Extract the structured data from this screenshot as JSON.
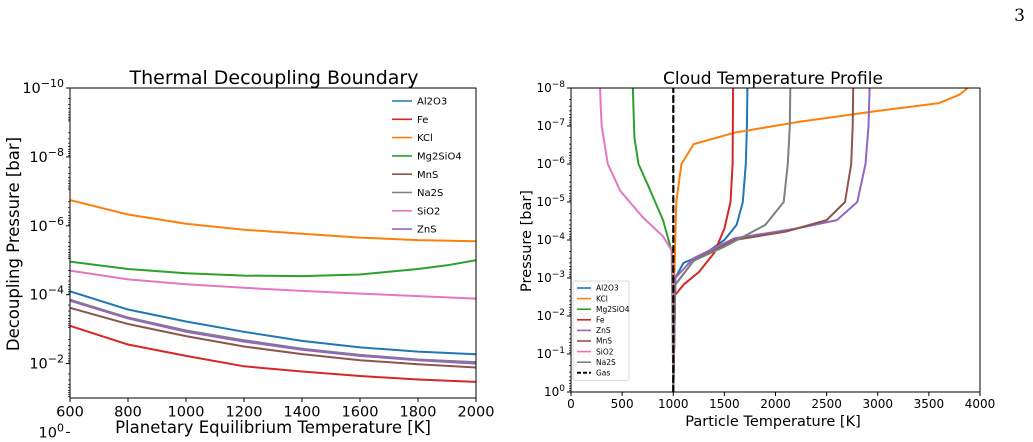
{
  "page": {
    "number": "3"
  },
  "chart_data": [
    {
      "type": "line",
      "title": "Thermal Decoupling Boundary",
      "xlabel": "Planetary Equilibrium Temperature [K]",
      "ylabel": "Decoupling Pressure [bar]",
      "xlim": [
        600,
        2000
      ],
      "ylim": [
        -1,
        -10
      ],
      "y_scale": "log (inverted)",
      "x_ticks": [
        "600",
        "800",
        "1000",
        "1200",
        "1400",
        "1600",
        "1800",
        "2000"
      ],
      "y_ticks": [
        {
          "exp": 0,
          "label": "10",
          "sup": "0"
        },
        {
          "exp": -2,
          "label": "10",
          "sup": "−2"
        },
        {
          "exp": -4,
          "label": "10",
          "sup": "−4"
        },
        {
          "exp": -6,
          "label": "10",
          "sup": "−6"
        },
        {
          "exp": -8,
          "label": "10",
          "sup": "−8"
        },
        {
          "exp": -10,
          "label": "10",
          "sup": "−10"
        }
      ],
      "legend_position": "top-right",
      "grid": false,
      "series": [
        {
          "name": "Al2O3",
          "color": "#1f77b4",
          "x": [
            600,
            800,
            1000,
            1200,
            1400,
            1600,
            1800,
            2000
          ],
          "y": [
            8e-05,
            0.00027,
            0.0006,
            0.0012,
            0.0022,
            0.0034,
            0.0045,
            0.0054
          ]
        },
        {
          "name": "Fe",
          "color": "#d62728",
          "x": [
            600,
            800,
            1000,
            1200,
            1400,
            1600,
            1800,
            2000
          ],
          "y": [
            0.0008,
            0.0028,
            0.006,
            0.012,
            0.017,
            0.023,
            0.029,
            0.034
          ]
        },
        {
          "name": "KCl",
          "color": "#ff7f0e",
          "x": [
            600,
            800,
            1000,
            1200,
            1400,
            1600,
            1800,
            2000
          ],
          "y": [
            1.8e-07,
            4.7e-07,
            8.7e-07,
            1.3e-06,
            1.7e-06,
            2.2e-06,
            2.6e-06,
            2.8e-06
          ]
        },
        {
          "name": "Mg2SiO4",
          "color": "#2ca02c",
          "x": [
            600,
            800,
            1000,
            1200,
            1400,
            1600,
            1800,
            1900,
            2000
          ],
          "y": [
            1.1e-05,
            1.8e-05,
            2.4e-05,
            2.8e-05,
            2.9e-05,
            2.6e-05,
            1.8e-05,
            1.4e-05,
            1e-05
          ]
        },
        {
          "name": "MnS",
          "color": "#8c564b",
          "x": [
            600,
            800,
            1000,
            1200,
            1400,
            1600,
            1800,
            2000
          ],
          "y": [
            0.00024,
            0.00071,
            0.0016,
            0.0032,
            0.0053,
            0.008,
            0.0105,
            0.013
          ]
        },
        {
          "name": "Na2S",
          "color": "#7f7f7f",
          "x": [
            600,
            800,
            1000,
            1200,
            1400,
            1600,
            1800,
            2000
          ],
          "y": [
            0.00014,
            0.00046,
            0.0011,
            0.0021,
            0.0037,
            0.0056,
            0.0076,
            0.0091
          ]
        },
        {
          "name": "SiO2",
          "color": "#e377c2",
          "x": [
            600,
            800,
            1000,
            1200,
            1400,
            1600,
            1800,
            2000
          ],
          "y": [
            2e-05,
            3.6e-05,
            5e-05,
            6.3e-05,
            7.8e-05,
            9.3e-05,
            0.00011,
            0.00013
          ]
        },
        {
          "name": "ZnS",
          "color": "#9467bd",
          "x": [
            600,
            800,
            1000,
            1200,
            1400,
            1600,
            1800,
            2000
          ],
          "y": [
            0.00015,
            0.00049,
            0.0012,
            0.0023,
            0.004,
            0.006,
            0.008,
            0.01
          ]
        }
      ]
    },
    {
      "type": "line",
      "title": "Cloud Temperature Profile",
      "xlabel": "Particle Temperature [K]",
      "ylabel": "Pressure [bar]",
      "xlim": [
        0,
        4000
      ],
      "ylim": [
        0,
        -8
      ],
      "y_scale": "log (inverted)",
      "x_ticks": [
        "0",
        "500",
        "1000",
        "1500",
        "2000",
        "2500",
        "3000",
        "3500",
        "4000"
      ],
      "y_ticks": [
        {
          "exp": 0,
          "label": "10",
          "sup": "0"
        },
        {
          "exp": -1,
          "label": "10",
          "sup": "−1"
        },
        {
          "exp": -2,
          "label": "10",
          "sup": "−2"
        },
        {
          "exp": -3,
          "label": "10",
          "sup": "−3"
        },
        {
          "exp": -4,
          "label": "10",
          "sup": "−4"
        },
        {
          "exp": -5,
          "label": "10",
          "sup": "−5"
        },
        {
          "exp": -6,
          "label": "10",
          "sup": "−6"
        },
        {
          "exp": -7,
          "label": "10",
          "sup": "−7"
        },
        {
          "exp": -8,
          "label": "10",
          "sup": "−8"
        }
      ],
      "legend_position": "lower-left",
      "grid": false,
      "series": [
        {
          "name": "Al2O3",
          "color": "#1f77b4",
          "x": [
            1000,
            1020,
            1100,
            1300,
            1500,
            1620,
            1680,
            1710,
            1720,
            1725
          ],
          "y": [
            1,
            0.001,
            0.0004,
            0.00024,
            0.0001,
            4e-05,
            1e-05,
            1e-06,
            1e-07,
            1e-08
          ]
        },
        {
          "name": "KCl",
          "color": "#ff7f0e",
          "x": [
            1000,
            1010,
            1030,
            1080,
            1200,
            1600,
            2200,
            3000,
            3600,
            3800,
            3880
          ],
          "y": [
            1,
            0.001,
            1e-05,
            1e-06,
            3e-07,
            1.5e-07,
            8e-08,
            4e-08,
            2.5e-08,
            1.5e-08,
            1e-08
          ]
        },
        {
          "name": "Mg2SiO4",
          "color": "#2ca02c",
          "x": [
            1000,
            985,
            900,
            760,
            660,
            620,
            610,
            605
          ],
          "y": [
            1,
            0.0002,
            3e-05,
            4e-06,
            1e-06,
            2e-07,
            3e-08,
            1e-08
          ]
        },
        {
          "name": "Fe",
          "color": "#d62728",
          "x": [
            1000,
            1010,
            1100,
            1250,
            1400,
            1500,
            1560,
            1580,
            1585
          ],
          "y": [
            1,
            0.003,
            0.0015,
            0.0007,
            0.00022,
            5e-05,
            1e-05,
            1e-06,
            1e-08
          ]
        },
        {
          "name": "ZnS",
          "color": "#9467bd",
          "x": [
            1000,
            1020,
            1200,
            1600,
            2200,
            2600,
            2800,
            2880,
            2910,
            2920
          ],
          "y": [
            1,
            0.001,
            0.0003,
            9e-05,
            5e-05,
            3e-05,
            1e-05,
            1e-06,
            1e-07,
            1e-08
          ]
        },
        {
          "name": "MnS",
          "color": "#8c564b",
          "x": [
            1000,
            1020,
            1200,
            1600,
            2100,
            2500,
            2680,
            2740,
            2755,
            2760
          ],
          "y": [
            1,
            0.0015,
            0.00035,
            0.0001,
            6e-05,
            3e-05,
            1e-05,
            1e-06,
            1e-07,
            1e-08
          ]
        },
        {
          "name": "SiO2",
          "color": "#e377c2",
          "x": [
            1000,
            990,
            900,
            700,
            480,
            360,
            300,
            290,
            285
          ],
          "y": [
            1,
            0.0002,
            8e-05,
            2.5e-05,
            5e-06,
            1e-06,
            1e-07,
            3e-08,
            1e-08
          ]
        },
        {
          "name": "Na2S",
          "color": "#7f7f7f",
          "x": [
            1000,
            1020,
            1200,
            1500,
            1900,
            2080,
            2120,
            2140,
            2145
          ],
          "y": [
            1,
            0.0015,
            0.00035,
            0.00015,
            4e-05,
            1e-05,
            1e-06,
            1e-07,
            1e-08
          ]
        },
        {
          "name": "Gas",
          "color": "#000000",
          "dashed": true,
          "x": [
            1000,
            1000
          ],
          "y": [
            1,
            1e-08
          ]
        }
      ]
    }
  ]
}
